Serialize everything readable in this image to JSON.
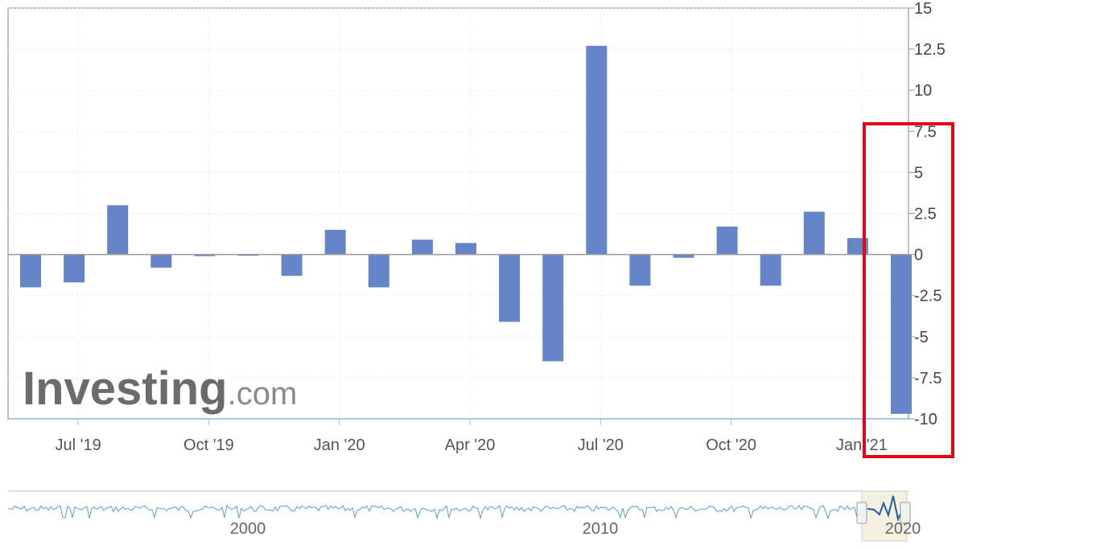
{
  "brand": {
    "name": "Investing",
    "suffix": ".com"
  },
  "navigator_labels": [
    "2000",
    "2010",
    "2020"
  ],
  "colors": {
    "bar": "#6685c8",
    "highlight_box": "#e30613",
    "nav_line": "#5a9bd5",
    "axis": "#999999"
  },
  "chart_data": {
    "type": "bar",
    "categories": [
      "Jun '19",
      "Jul '19",
      "Aug '19",
      "Sep '19",
      "Oct '19",
      "Nov '19",
      "Dec '19",
      "Jan '20",
      "Feb '20",
      "Mar '20",
      "Apr '20",
      "May '20",
      "Jun '20",
      "Jul '20",
      "Aug '20",
      "Sep '20",
      "Oct '20",
      "Nov '20",
      "Dec '20",
      "Jan '21",
      "Feb '21"
    ],
    "values": [
      -2.0,
      -1.7,
      3.0,
      -0.8,
      -0.1,
      0.0,
      -1.3,
      1.5,
      -2.0,
      0.9,
      0.7,
      -4.1,
      -6.5,
      12.7,
      -1.9,
      -0.2,
      1.7,
      -1.9,
      2.6,
      1.0,
      -9.7
    ],
    "x_tick_labels": [
      "Jul '19",
      "Oct '19",
      "Jan '20",
      "Apr '20",
      "Jul '20",
      "Oct '20",
      "Jan '21"
    ],
    "y_tick_labels": [
      "15",
      "12.5",
      "10",
      "7.5",
      "5",
      "2.5",
      "0",
      "-2.5",
      "-5",
      "-7.5",
      "-10"
    ],
    "ylim": [
      -10,
      15
    ],
    "y_axis_side": "right",
    "grid": true,
    "highlighted_category": "Feb '21"
  }
}
